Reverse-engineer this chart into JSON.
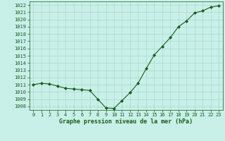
{
  "x": [
    0,
    1,
    2,
    3,
    4,
    5,
    6,
    7,
    8,
    9,
    10,
    11,
    12,
    13,
    14,
    15,
    16,
    17,
    18,
    19,
    20,
    21,
    22,
    23
  ],
  "y": [
    1011.0,
    1011.2,
    1011.1,
    1010.8,
    1010.5,
    1010.4,
    1010.3,
    1010.2,
    1009.0,
    1007.8,
    1007.7,
    1008.8,
    1009.9,
    1011.2,
    1013.2,
    1015.1,
    1016.3,
    1017.5,
    1019.0,
    1019.8,
    1020.9,
    1021.2,
    1021.7,
    1021.9
  ],
  "line_color": "#1a5c1a",
  "marker": "D",
  "marker_size": 2.0,
  "bg_color": "#c8f0e8",
  "grid_color": "#a8d8cc",
  "xlabel": "Graphe pression niveau de la mer (hPa)",
  "xlabel_color": "#1a5c1a",
  "tick_color": "#1a5c1a",
  "ylim": [
    1007.5,
    1022.5
  ],
  "xlim": [
    -0.5,
    23.5
  ],
  "yticks": [
    1008,
    1009,
    1010,
    1011,
    1012,
    1013,
    1014,
    1015,
    1016,
    1017,
    1018,
    1019,
    1020,
    1021,
    1022
  ],
  "xticks": [
    0,
    1,
    2,
    3,
    4,
    5,
    6,
    7,
    8,
    9,
    10,
    11,
    12,
    13,
    14,
    15,
    16,
    17,
    18,
    19,
    20,
    21,
    22,
    23
  ],
  "tick_fontsize": 5.0,
  "xlabel_fontsize": 6.0
}
